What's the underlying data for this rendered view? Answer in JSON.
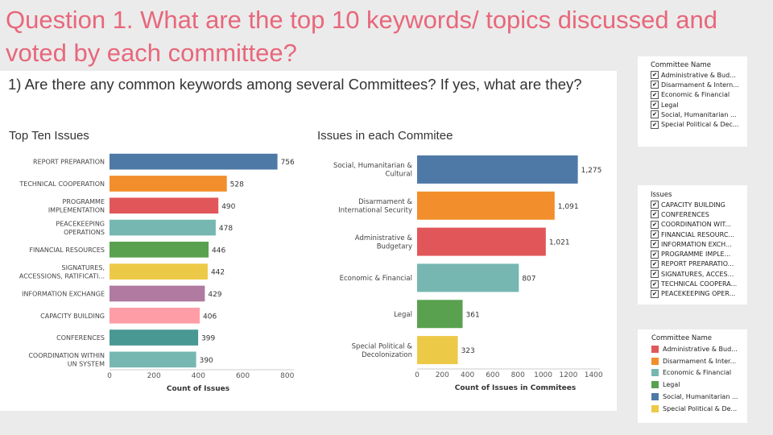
{
  "slide": {
    "title": "Question 1. What are the top 10 keywords/ topics discussed and voted by each committee?"
  },
  "dashboard": {
    "title": "1) Are there any common keywords among several Committees? If yes, what are they?"
  },
  "chart_data": [
    {
      "type": "bar",
      "orientation": "horizontal",
      "title": "Top Ten Issues",
      "xlabel": "Count of Issues",
      "categories": [
        [
          "REPORT PREPARATION"
        ],
        [
          "TECHNICAL COOPERATION"
        ],
        [
          "PROGRAMME",
          "IMPLEMENTATION"
        ],
        [
          "PEACEKEEPING",
          "OPERATIONS"
        ],
        [
          "FINANCIAL RESOURCES"
        ],
        [
          "SIGNATURES,",
          "ACCESSIONS, RATIFICATI..."
        ],
        [
          "INFORMATION EXCHANGE"
        ],
        [
          "CAPACITY BUILDING"
        ],
        [
          "CONFERENCES"
        ],
        [
          "COORDINATION WITHIN",
          "UN SYSTEM"
        ]
      ],
      "values": [
        756,
        528,
        490,
        478,
        446,
        442,
        429,
        406,
        399,
        390
      ],
      "value_labels": [
        "756",
        "528",
        "490",
        "478",
        "446",
        "442",
        "429",
        "406",
        "399",
        "390"
      ],
      "colors": [
        "#4e79a7",
        "#f28e2b",
        "#e15759",
        "#76b7b2",
        "#59a14f",
        "#edc948",
        "#b07aa1",
        "#ff9da7",
        "#499894",
        "#76b7b2"
      ],
      "xticks": [
        0,
        200,
        400,
        600,
        800
      ],
      "xlim": [
        0,
        830
      ],
      "grid": false
    },
    {
      "type": "bar",
      "orientation": "horizontal",
      "title": "Issues in each Commitee",
      "xlabel": "Count of Issues in Commitees",
      "categories": [
        [
          "Social, Humanitarian &",
          "Cultural"
        ],
        [
          "Disarmament &",
          "International Security"
        ],
        [
          "Administrative &",
          "Budgetary"
        ],
        [
          "Economic & Financial"
        ],
        [
          "Legal"
        ],
        [
          "Special Political &",
          "Decolonization"
        ]
      ],
      "values": [
        1275,
        1091,
        1021,
        807,
        361,
        323
      ],
      "value_labels": [
        "1,275",
        "1,091",
        "1,021",
        "807",
        "361",
        "323"
      ],
      "colors": [
        "#4e79a7",
        "#f28e2b",
        "#e15759",
        "#76b7b2",
        "#59a14f",
        "#edc948"
      ],
      "xticks": [
        0,
        200,
        400,
        600,
        800,
        1000,
        1200,
        1400
      ],
      "xlim": [
        0,
        1450
      ],
      "grid": false
    }
  ],
  "committee_filter": {
    "title": "Committee Name",
    "items": [
      "Administrative & Bud...",
      "Disarmament & Intern...",
      "Economic & Financial",
      "Legal",
      "Social, Humanitarian ...",
      "Special Political & Dec..."
    ],
    "check_glyph": "✔"
  },
  "issues_filter": {
    "title": "Issues",
    "items": [
      "CAPACITY BUILDING",
      "CONFERENCES",
      "COORDINATION WIT...",
      "FINANCIAL RESOURC...",
      "INFORMATION EXCH...",
      "PROGRAMME IMPLE...",
      "REPORT PREPARATIO...",
      "SIGNATURES, ACCES...",
      "TECHNICAL COOPERA...",
      "PEACEKEEPING OPER..."
    ],
    "check_glyph": "✔"
  },
  "committee_legend": {
    "title": "Committee Name",
    "items": [
      {
        "label": "Administrative & Bud...",
        "color": "#e15759"
      },
      {
        "label": "Disarmament & Inter...",
        "color": "#f28e2b"
      },
      {
        "label": "Economic & Financial",
        "color": "#76b7b2"
      },
      {
        "label": "Legal",
        "color": "#59a14f"
      },
      {
        "label": "Social, Humanitarian ...",
        "color": "#4e79a7"
      },
      {
        "label": "Special Political & De...",
        "color": "#edc948"
      }
    ]
  }
}
